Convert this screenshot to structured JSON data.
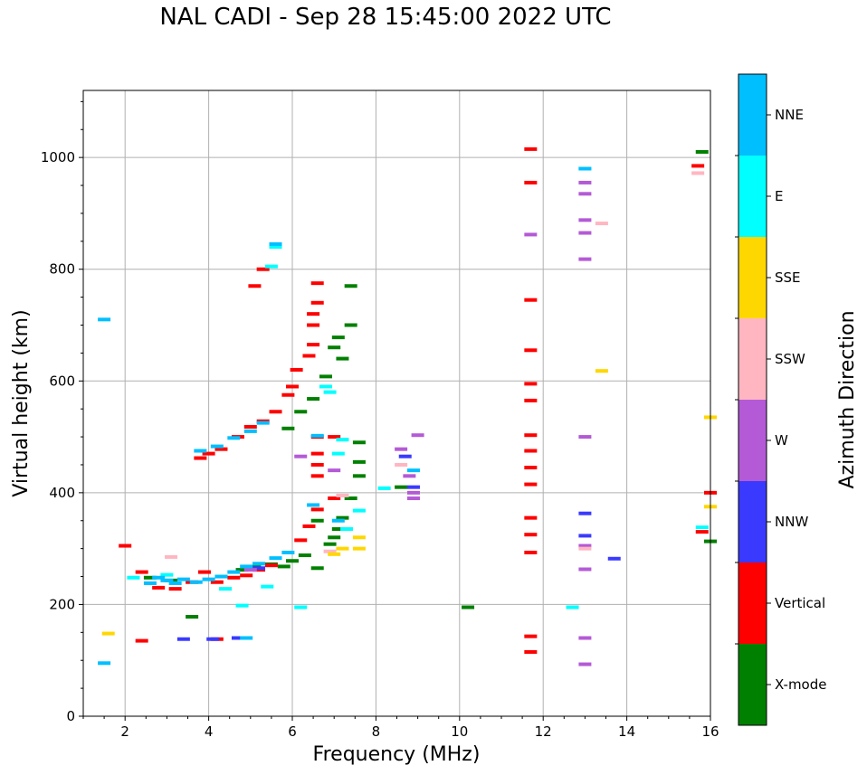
{
  "title": "NAL CADI - Sep 28 15:45:00 2022 UTC",
  "chart_data": {
    "type": "scatter",
    "title": "NAL CADI - Sep 28 15:45:00 2022 UTC",
    "xlabel": "Frequency (MHz)",
    "ylabel": "Virtual height (km)",
    "xlim": [
      1,
      16
    ],
    "ylim": [
      0,
      1120
    ],
    "xticks": [
      2,
      4,
      6,
      8,
      10,
      12,
      14,
      16
    ],
    "yticks": [
      0,
      200,
      400,
      600,
      800,
      1000
    ],
    "grid": true,
    "colorbar": {
      "label": "Azimuth Direction",
      "categories": [
        "X-mode",
        "Vertical",
        "NNW",
        "W",
        "SSW",
        "SSE",
        "E",
        "NNE"
      ],
      "colors": [
        "#008000",
        "#ff0000",
        "#3a3aff",
        "#b45ad6",
        "#ffb6c1",
        "#ffd700",
        "#00ffff",
        "#00bfff"
      ]
    },
    "series": [
      {
        "name": "X-mode",
        "points": [
          [
            2.6,
            248
          ],
          [
            3.1,
            243
          ],
          [
            3.6,
            178
          ],
          [
            4.8,
            262
          ],
          [
            5.1,
            267
          ],
          [
            5.5,
            272
          ],
          [
            5.8,
            268
          ],
          [
            6.0,
            278
          ],
          [
            6.3,
            288
          ],
          [
            6.6,
            265
          ],
          [
            6.9,
            308
          ],
          [
            7.1,
            335
          ],
          [
            7.2,
            355
          ],
          [
            7.4,
            390
          ],
          [
            7.6,
            430
          ],
          [
            7.6,
            455
          ],
          [
            7.6,
            490
          ],
          [
            7.2,
            640
          ],
          [
            7.0,
            660
          ],
          [
            7.1,
            678
          ],
          [
            7.4,
            700
          ],
          [
            7.4,
            770
          ],
          [
            6.8,
            608
          ],
          [
            6.5,
            568
          ],
          [
            6.2,
            545
          ],
          [
            5.9,
            515
          ],
          [
            8.6,
            410
          ],
          [
            10.2,
            195
          ],
          [
            15.8,
            1010
          ],
          [
            16.0,
            313
          ],
          [
            6.6,
            350
          ],
          [
            7.0,
            320
          ]
        ]
      },
      {
        "name": "Vertical",
        "points": [
          [
            2.0,
            305
          ],
          [
            2.4,
            135
          ],
          [
            2.4,
            258
          ],
          [
            2.8,
            230
          ],
          [
            3.2,
            228
          ],
          [
            3.6,
            240
          ],
          [
            3.9,
            258
          ],
          [
            4.2,
            240
          ],
          [
            4.2,
            138
          ],
          [
            4.6,
            248
          ],
          [
            4.9,
            252
          ],
          [
            5.2,
            262
          ],
          [
            5.5,
            270
          ],
          [
            4.0,
            470
          ],
          [
            3.8,
            462
          ],
          [
            4.3,
            478
          ],
          [
            4.7,
            500
          ],
          [
            5.0,
            518
          ],
          [
            5.3,
            528
          ],
          [
            5.6,
            545
          ],
          [
            5.9,
            575
          ],
          [
            6.0,
            590
          ],
          [
            6.1,
            620
          ],
          [
            6.4,
            645
          ],
          [
            6.5,
            665
          ],
          [
            6.5,
            700
          ],
          [
            6.5,
            720
          ],
          [
            6.6,
            740
          ],
          [
            6.6,
            775
          ],
          [
            5.3,
            800
          ],
          [
            5.1,
            770
          ],
          [
            6.2,
            315
          ],
          [
            6.4,
            340
          ],
          [
            6.6,
            370
          ],
          [
            6.6,
            430
          ],
          [
            6.6,
            450
          ],
          [
            6.6,
            470
          ],
          [
            6.6,
            500
          ],
          [
            7.0,
            500
          ],
          [
            7.0,
            390
          ],
          [
            11.7,
            1015
          ],
          [
            11.7,
            955
          ],
          [
            11.7,
            745
          ],
          [
            11.7,
            655
          ],
          [
            11.7,
            595
          ],
          [
            11.7,
            565
          ],
          [
            11.7,
            503
          ],
          [
            11.7,
            475
          ],
          [
            11.7,
            445
          ],
          [
            11.7,
            415
          ],
          [
            11.7,
            355
          ],
          [
            11.7,
            325
          ],
          [
            11.7,
            293
          ],
          [
            11.7,
            143
          ],
          [
            11.7,
            115
          ],
          [
            15.7,
            985
          ],
          [
            15.8,
            330
          ],
          [
            16.0,
            400
          ]
        ]
      },
      {
        "name": "NNW",
        "points": [
          [
            3.4,
            138
          ],
          [
            4.1,
            138
          ],
          [
            4.7,
            140
          ],
          [
            13.0,
            363
          ],
          [
            13.0,
            323
          ],
          [
            13.7,
            282
          ],
          [
            8.7,
            465
          ],
          [
            8.9,
            410
          ],
          [
            5.2,
            265
          ]
        ]
      },
      {
        "name": "W",
        "points": [
          [
            13.0,
            955
          ],
          [
            13.0,
            935
          ],
          [
            13.0,
            888
          ],
          [
            13.0,
            865
          ],
          [
            13.0,
            818
          ],
          [
            13.0,
            500
          ],
          [
            13.0,
            305
          ],
          [
            13.0,
            263
          ],
          [
            13.0,
            140
          ],
          [
            13.0,
            93
          ],
          [
            11.7,
            862
          ],
          [
            8.6,
            478
          ],
          [
            8.8,
            430
          ],
          [
            8.9,
            400
          ],
          [
            8.9,
            390
          ],
          [
            9.0,
            503
          ],
          [
            7.0,
            440
          ],
          [
            6.2,
            465
          ],
          [
            5.0,
            262
          ]
        ]
      },
      {
        "name": "SSW",
        "points": [
          [
            13.4,
            882
          ],
          [
            15.7,
            972
          ],
          [
            13.0,
            300
          ],
          [
            7.2,
            395
          ],
          [
            6.9,
            295
          ],
          [
            3.1,
            285
          ],
          [
            8.6,
            450
          ]
        ]
      },
      {
        "name": "SSE",
        "points": [
          [
            13.4,
            618
          ],
          [
            7.6,
            320
          ],
          [
            7.2,
            300
          ],
          [
            7.0,
            290
          ],
          [
            7.6,
            300
          ],
          [
            1.6,
            148
          ],
          [
            16.0,
            535
          ],
          [
            16.0,
            375
          ]
        ]
      },
      {
        "name": "E",
        "points": [
          [
            4.8,
            198
          ],
          [
            4.4,
            228
          ],
          [
            5.4,
            232
          ],
          [
            6.2,
            195
          ],
          [
            12.7,
            195
          ],
          [
            15.8,
            338
          ],
          [
            13.0,
            980
          ],
          [
            7.3,
            335
          ],
          [
            7.1,
            470
          ],
          [
            7.2,
            495
          ],
          [
            7.6,
            368
          ],
          [
            8.2,
            408
          ],
          [
            6.9,
            580
          ],
          [
            6.8,
            590
          ],
          [
            5.6,
            840
          ],
          [
            5.5,
            805
          ],
          [
            2.2,
            248
          ],
          [
            3.0,
            253
          ]
        ]
      },
      {
        "name": "NNE",
        "points": [
          [
            2.6,
            238
          ],
          [
            2.8,
            248
          ],
          [
            3.0,
            243
          ],
          [
            3.2,
            238
          ],
          [
            3.4,
            245
          ],
          [
            3.7,
            240
          ],
          [
            4.0,
            245
          ],
          [
            4.3,
            250
          ],
          [
            4.6,
            258
          ],
          [
            4.9,
            268
          ],
          [
            5.2,
            273
          ],
          [
            5.6,
            283
          ],
          [
            5.9,
            293
          ],
          [
            1.5,
            710
          ],
          [
            1.5,
            95
          ],
          [
            3.8,
            475
          ],
          [
            4.2,
            483
          ],
          [
            4.6,
            498
          ],
          [
            5.0,
            510
          ],
          [
            5.3,
            525
          ],
          [
            5.6,
            845
          ],
          [
            6.6,
            502
          ],
          [
            6.5,
            378
          ],
          [
            7.1,
            350
          ],
          [
            8.9,
            440
          ],
          [
            13.0,
            980
          ],
          [
            4.9,
            140
          ]
        ]
      }
    ]
  }
}
